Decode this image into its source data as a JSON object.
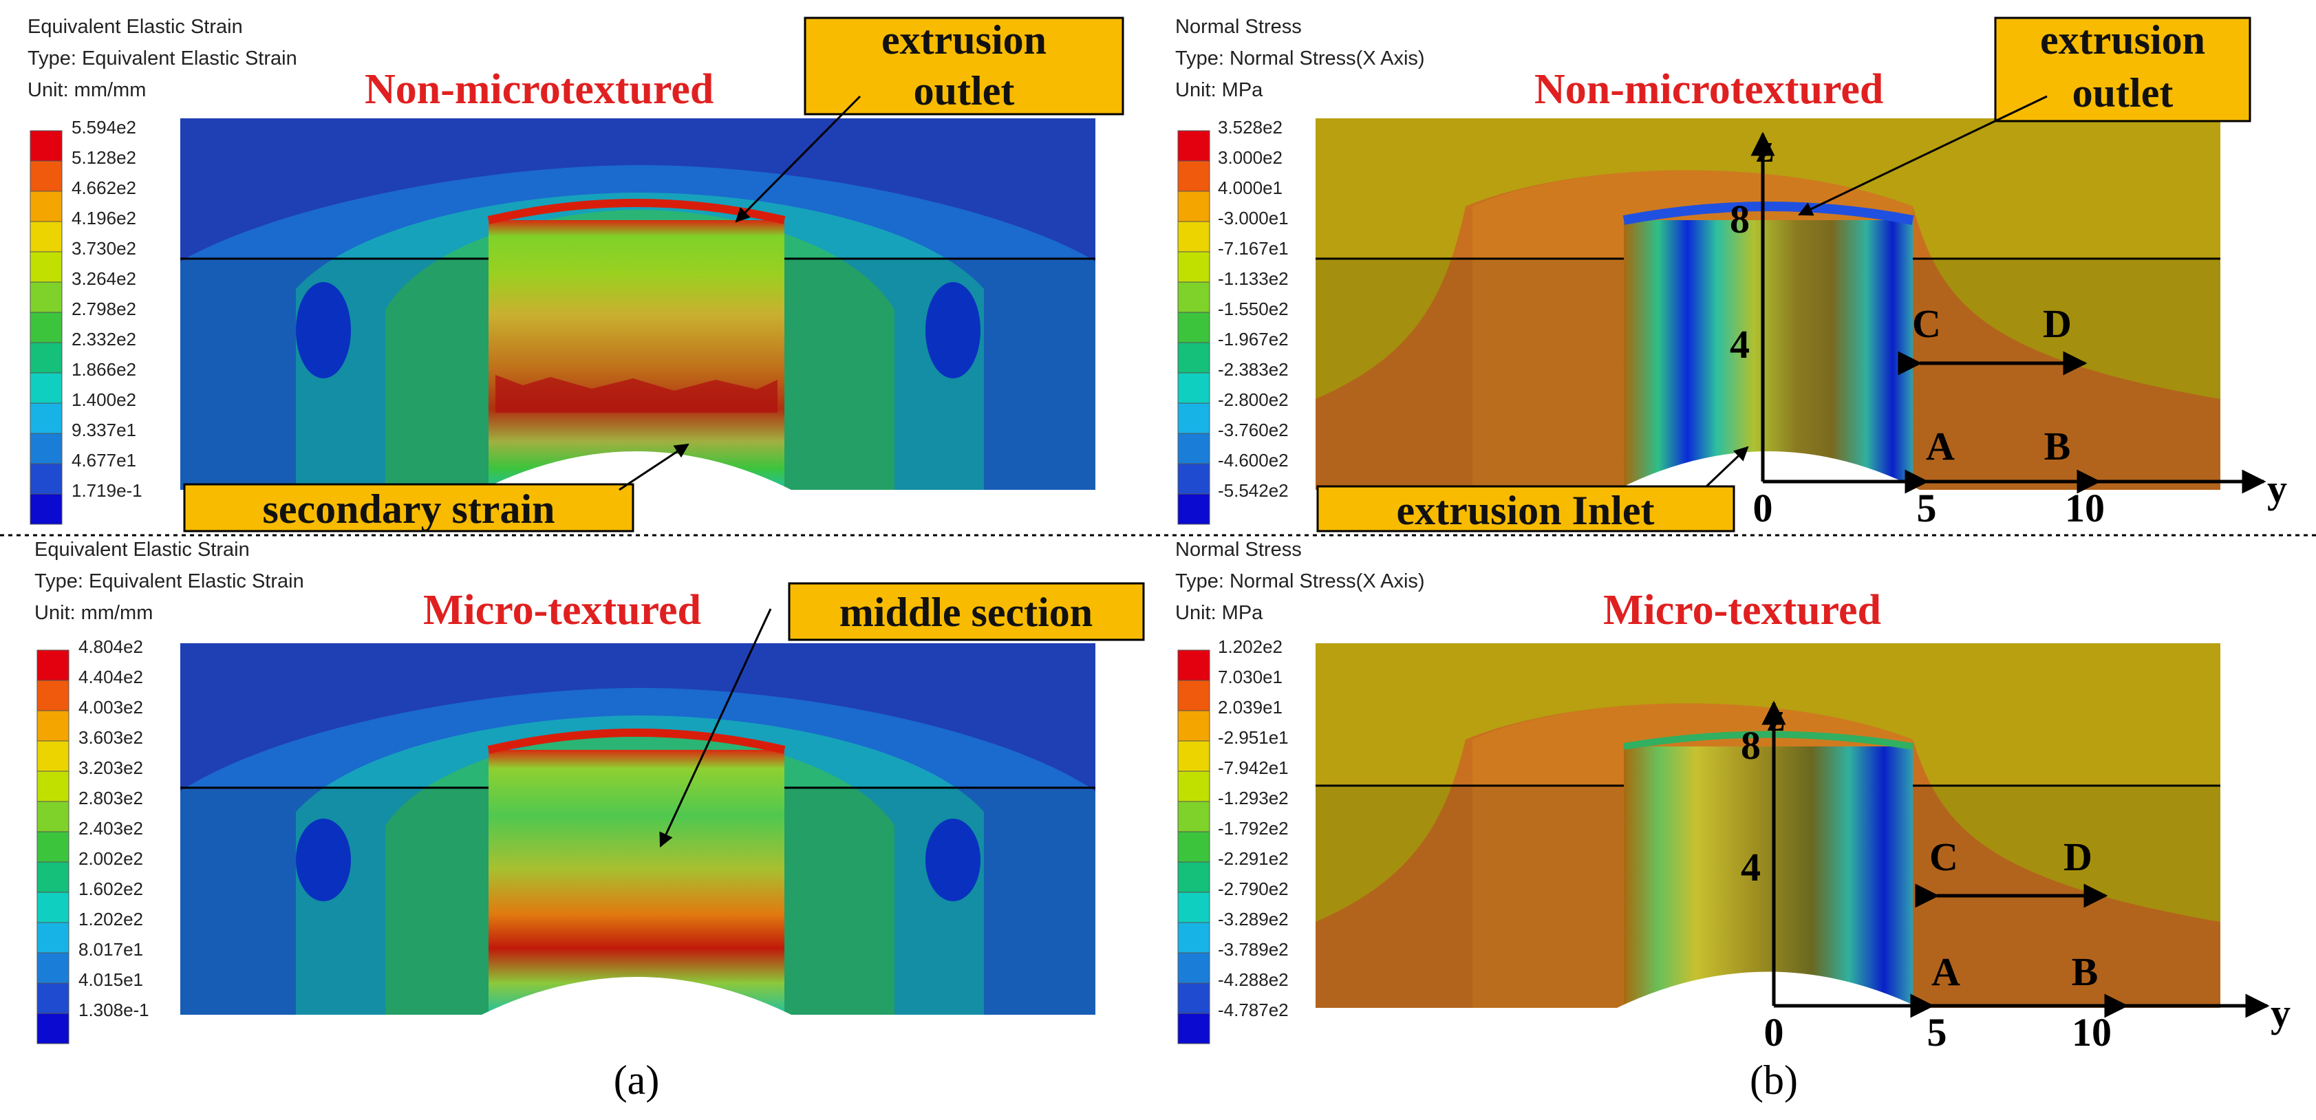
{
  "panel_a_label": "(a)",
  "panel_b_label": "(b)",
  "plots": [
    {
      "header": [
        "Equivalent Elastic Strain",
        "Type: Equivalent Elastic Strain",
        "Unit: mm/mm"
      ],
      "title": "Non-microtextured",
      "legend_values": [
        "5.594e2",
        "5.128e2",
        "4.662e2",
        "4.196e2",
        "3.730e2",
        "3.264e2",
        "2.798e2",
        "2.332e2",
        "1.866e2",
        "1.400e2",
        "9.337e1",
        "4.677e1",
        "1.719e-1"
      ],
      "callouts": [
        "extrusion outlet",
        "secondary strain"
      ]
    },
    {
      "header": [
        "Normal Stress",
        "Type: Normal Stress(X Axis)",
        "Unit: MPa"
      ],
      "title": "Non-microtextured",
      "legend_values": [
        "3.528e2",
        "3.000e2",
        "4.000e1",
        "-3.000e1",
        "-7.167e1",
        "-1.133e2",
        "-1.550e2",
        "-1.967e2",
        "-2.383e2",
        "-2.800e2",
        "-3.760e2",
        "-4.600e2",
        "-5.542e2"
      ],
      "callouts": [
        "extrusion outlet",
        "extrusion Inlet"
      ],
      "axis": {
        "z": "z",
        "y": "y",
        "z_ticks": [
          "8",
          "4"
        ],
        "y_ticks": [
          "0",
          "5",
          "10"
        ],
        "points": [
          "C",
          "D",
          "A",
          "B"
        ]
      }
    },
    {
      "header": [
        "Equivalent Elastic Strain",
        "Type: Equivalent Elastic Strain",
        "Unit: mm/mm"
      ],
      "title": "Micro-textured",
      "legend_values": [
        "4.804e2",
        "4.404e2",
        "4.003e2",
        "3.603e2",
        "3.203e2",
        "2.803e2",
        "2.403e2",
        "2.002e2",
        "1.602e2",
        "1.202e2",
        "8.017e1",
        "4.015e1",
        "1.308e-1"
      ],
      "callouts": [
        "middle section"
      ]
    },
    {
      "header": [
        "Normal Stress",
        "Type: Normal Stress(X Axis)",
        "Unit: MPa"
      ],
      "title": "Micro-textured",
      "legend_values": [
        "1.202e2",
        "7.030e1",
        "2.039e1",
        "-2.951e1",
        "-7.942e1",
        "-1.293e2",
        "-1.792e2",
        "-2.291e2",
        "-2.790e2",
        "-3.289e2",
        "-3.789e2",
        "-4.288e2",
        "-4.787e2"
      ],
      "callouts": [],
      "axis": {
        "z": "z",
        "y": "y",
        "z_ticks": [
          "8",
          "4"
        ],
        "y_ticks": [
          "0",
          "5",
          "10"
        ],
        "points": [
          "C",
          "D",
          "A",
          "B"
        ]
      }
    }
  ],
  "legend_colors": [
    "#e3000f",
    "#ef5a0d",
    "#f5a500",
    "#ebd400",
    "#c2e000",
    "#7fd22a",
    "#3dc43d",
    "#14c07a",
    "#0fd0c0",
    "#17b3e6",
    "#1a7ed9",
    "#1f4bd0",
    "#0a0ad0"
  ]
}
